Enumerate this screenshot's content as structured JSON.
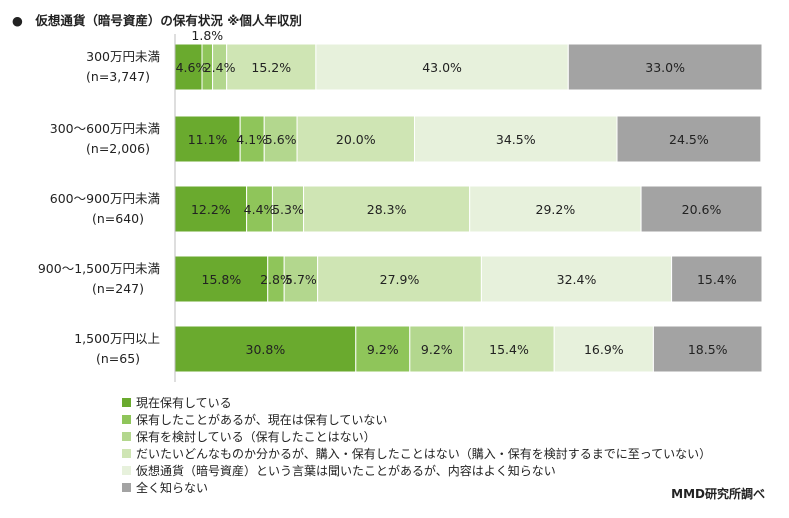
{
  "title": "●　仮想通貨（暗号資産）の保有状況 ※個人年収別",
  "source": "MMD研究所調べ",
  "chart_data": {
    "type": "bar",
    "orientation": "horizontal",
    "stacked": true,
    "percent_stacked": true,
    "xlim": [
      0,
      100
    ],
    "categories": [
      {
        "label": "300万円未満",
        "n": "(n=3,747)"
      },
      {
        "label": "300～600万円未満",
        "n": "(n=2,006)"
      },
      {
        "label": "600～900万円未満",
        "n": "(n=640)"
      },
      {
        "label": "900～1,500万円未満",
        "n": "(n=247)"
      },
      {
        "label": "1,500万円以上",
        "n": "(n=65)"
      }
    ],
    "series": [
      {
        "name": "現在保有している",
        "color": "#6aaa2e",
        "values": [
          4.6,
          11.1,
          12.2,
          15.8,
          30.8
        ]
      },
      {
        "name": "保有したことがあるが、現在は保有していない",
        "color": "#8fc55a",
        "values": [
          1.8,
          4.1,
          4.4,
          2.8,
          9.2
        ]
      },
      {
        "name": "保有を検討している（保有したことはない）",
        "color": "#b3d78e",
        "values": [
          2.4,
          5.6,
          5.3,
          5.7,
          9.2
        ]
      },
      {
        "name": "だいたいどんなものか分かるが、購入・保有したことはない（購入・保有を検討するまでに至っていない）",
        "color": "#cfe5b4",
        "values": [
          15.2,
          20.0,
          28.3,
          27.9,
          15.4
        ]
      },
      {
        "name": "仮想通貨（暗号資産）という言葉は聞いたことがあるが、内容はよく知らない",
        "color": "#e7f1dc",
        "values": [
          43.0,
          34.5,
          29.2,
          32.4,
          16.9
        ]
      },
      {
        "name": "全く知らない",
        "color": "#a3a3a3",
        "values": [
          33.0,
          24.5,
          20.6,
          15.4,
          18.5
        ]
      }
    ],
    "legend_position": "bottom-left",
    "grid": false
  }
}
